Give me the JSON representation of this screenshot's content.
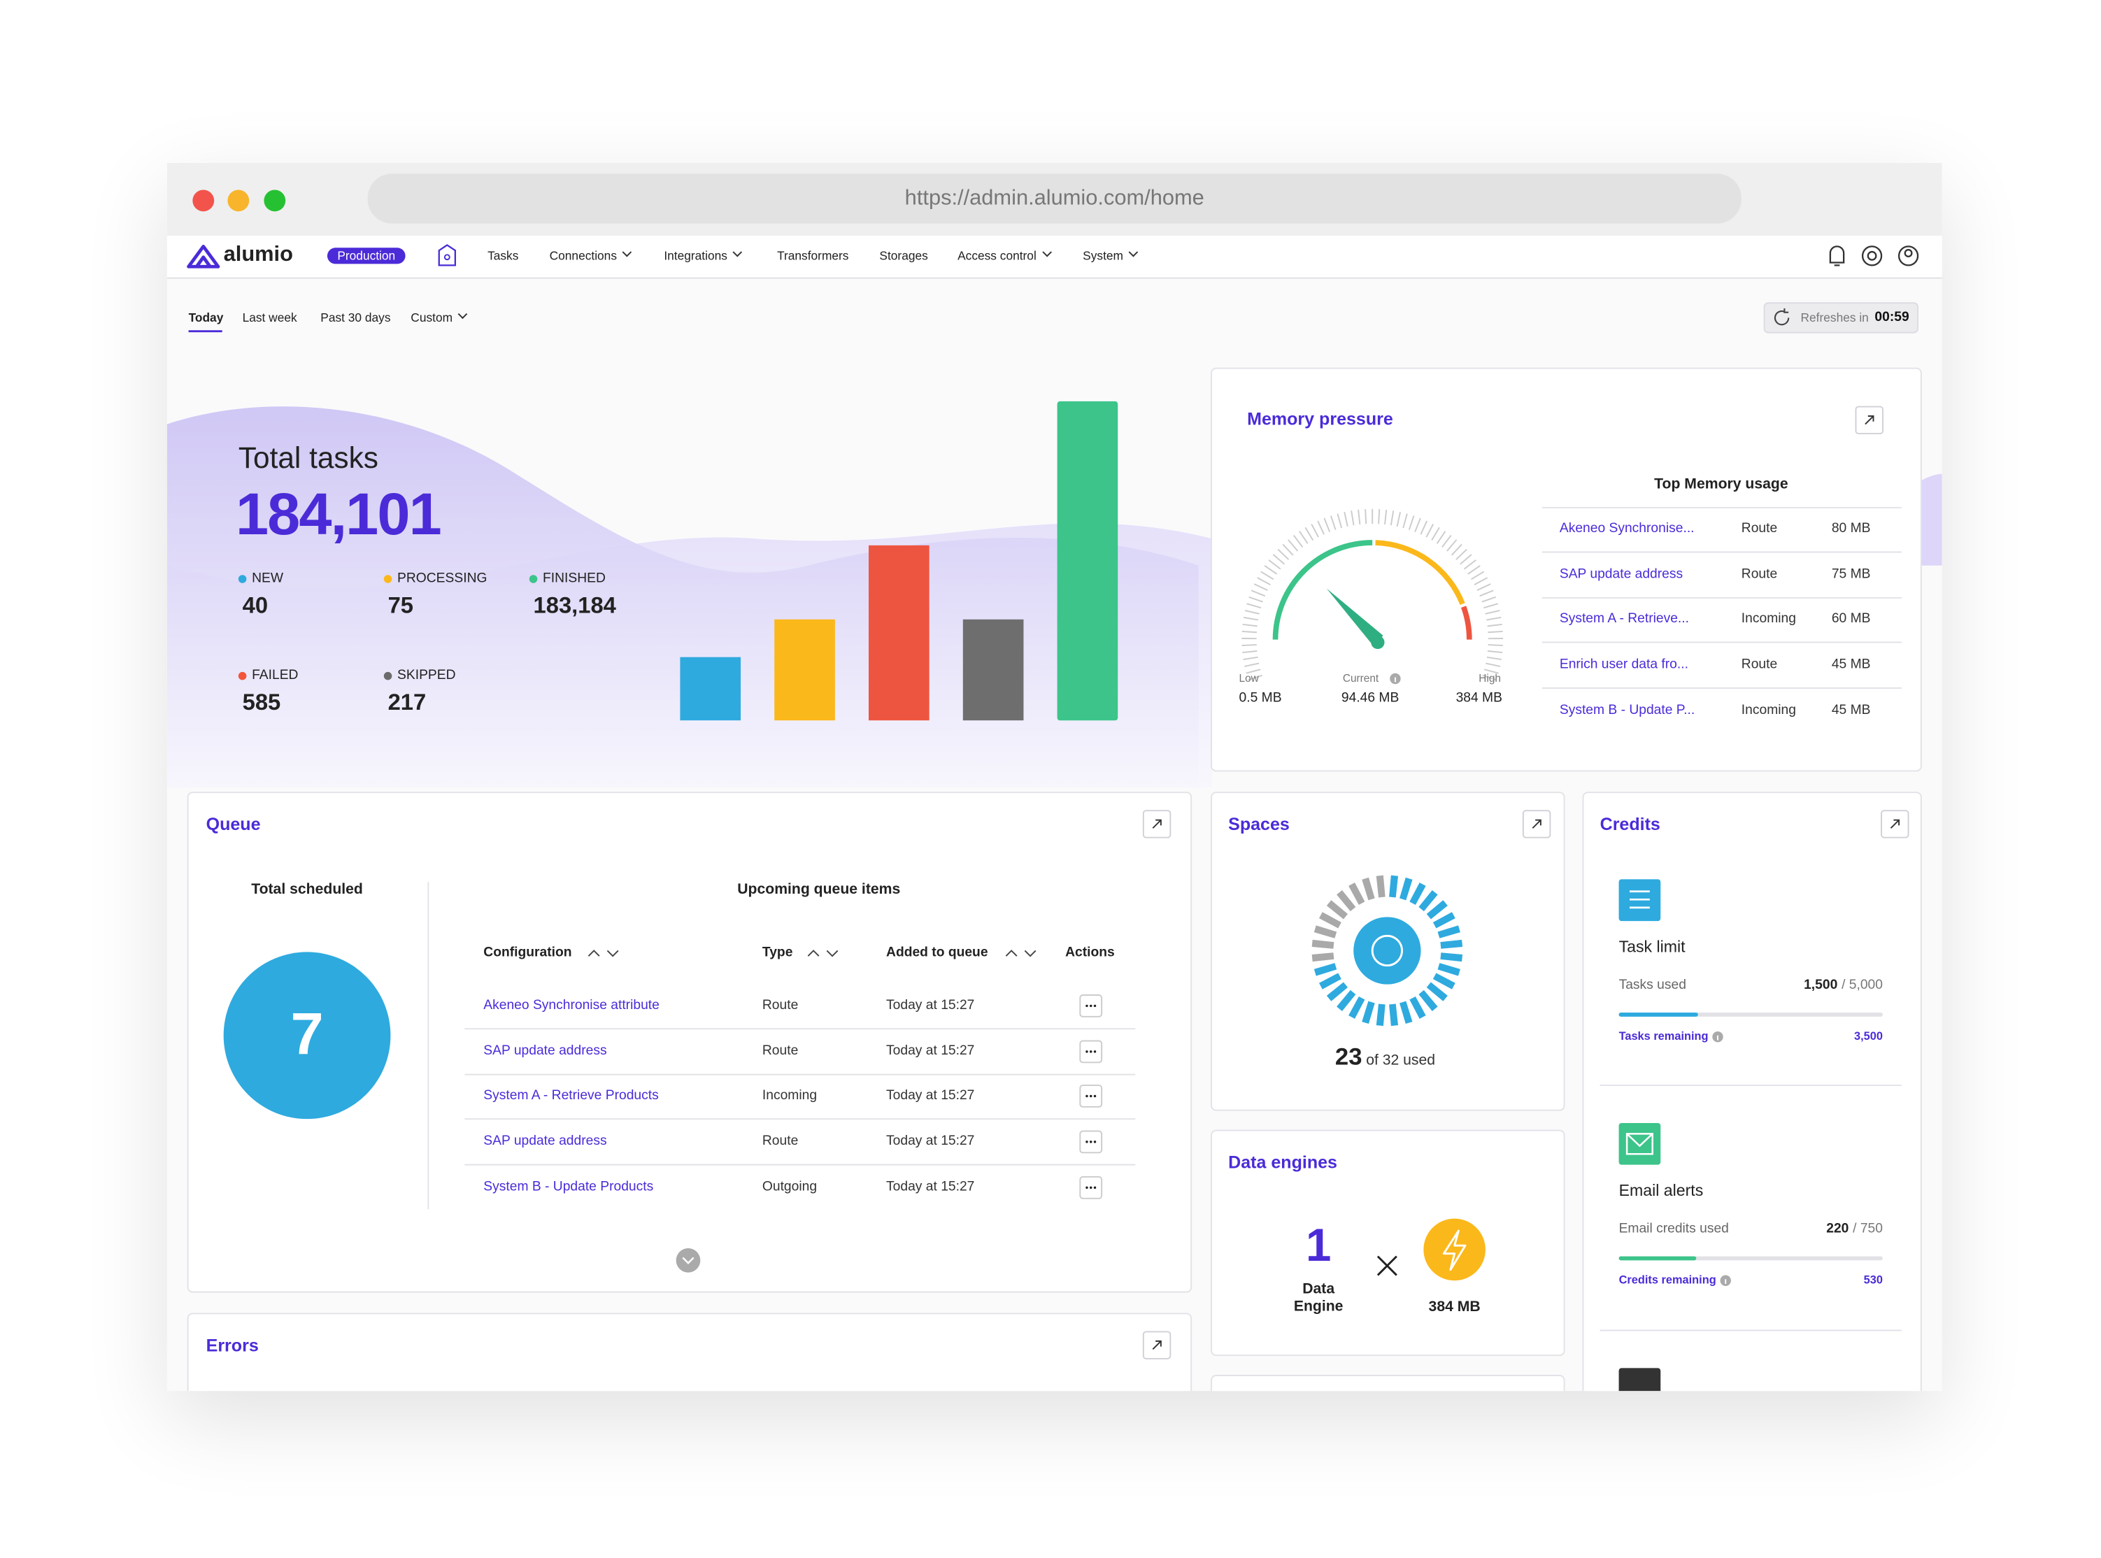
{
  "browser": {
    "url": "https://admin.alumio.com/home"
  },
  "nav": {
    "logo": "alumio",
    "environment": "Production",
    "items": [
      {
        "label": "Tasks",
        "dropdown": false
      },
      {
        "label": "Connections",
        "dropdown": true
      },
      {
        "label": "Integrations",
        "dropdown": true
      },
      {
        "label": "Transformers",
        "dropdown": false
      },
      {
        "label": "Storages",
        "dropdown": false
      },
      {
        "label": "Access control",
        "dropdown": true
      },
      {
        "label": "System",
        "dropdown": true
      }
    ]
  },
  "periods": {
    "items": [
      {
        "label": "Today",
        "dropdown": false
      },
      {
        "label": "Last week",
        "dropdown": false
      },
      {
        "label": "Past 30 days",
        "dropdown": false
      },
      {
        "label": "Custom",
        "dropdown": true
      }
    ],
    "active": 0
  },
  "refresh": {
    "label": "Refreshes in",
    "time": "00:59"
  },
  "total_tasks": {
    "title": "Total tasks",
    "value": "184,101",
    "statuses": [
      {
        "label": "NEW",
        "value": "40",
        "color": "#2eaadf"
      },
      {
        "label": "PROCESSING",
        "value": "75",
        "color": "#fbb81b"
      },
      {
        "label": "FINISHED",
        "value": "183,184",
        "color": "#3cc48a"
      },
      {
        "label": "FAILED",
        "value": "585",
        "color": "#f2553b"
      },
      {
        "label": "SKIPPED",
        "value": "217",
        "color": "#6b6b6b"
      }
    ]
  },
  "memory": {
    "title": "Memory pressure",
    "gauge": {
      "low_label": "Low",
      "low": "0.5 MB",
      "current_label": "Current",
      "current": "94.46 MB",
      "high_label": "High",
      "high": "384 MB"
    },
    "top_title": "Top Memory usage",
    "rows": [
      [
        "Akeneo Synchronise...",
        "Route",
        "80 MB"
      ],
      [
        "SAP update address",
        "Route",
        "75 MB"
      ],
      [
        "System A - Retrieve...",
        "Incoming",
        "60 MB"
      ],
      [
        "Enrich user data fro...",
        "Route",
        "45 MB"
      ],
      [
        "System B - Update P...",
        "Incoming",
        "45 MB"
      ]
    ]
  },
  "queue": {
    "title": "Queue",
    "total_label": "Total scheduled",
    "total": "7",
    "upcoming_title": "Upcoming queue items",
    "columns": [
      "Configuration",
      "Type",
      "Added to queue",
      "Actions"
    ],
    "rows": [
      [
        "Akeneo Synchronise attribute",
        "Route",
        "Today at 15:27"
      ],
      [
        "SAP update address",
        "Route",
        "Today at 15:27"
      ],
      [
        "System A - Retrieve Products",
        "Incoming",
        "Today at 15:27"
      ],
      [
        "SAP update address",
        "Route",
        "Today at 15:27"
      ],
      [
        "System B - Update Products",
        "Outgoing",
        "Today at 15:27"
      ]
    ]
  },
  "errors": {
    "title": "Errors"
  },
  "spaces": {
    "title": "Spaces",
    "used": 23,
    "of_text": "of",
    "total": 32,
    "suffix": "used"
  },
  "data_engines": {
    "title": "Data engines",
    "count": "1",
    "count_label": "Data Engine",
    "memory": "384 MB"
  },
  "credits": {
    "title": "Credits",
    "items": [
      {
        "title": "Task limit",
        "used_label": "Tasks used",
        "used": "1,500",
        "limit": "/ 5,000",
        "remaining_label": "Tasks remaining",
        "remaining": "3,500",
        "color": "#2eaadf"
      },
      {
        "title": "Email alerts",
        "used_label": "Email credits used",
        "used": "220",
        "limit": "/ 750",
        "remaining_label": "Credits remaining",
        "remaining": "530",
        "color": "#3cc48a"
      }
    ]
  }
}
